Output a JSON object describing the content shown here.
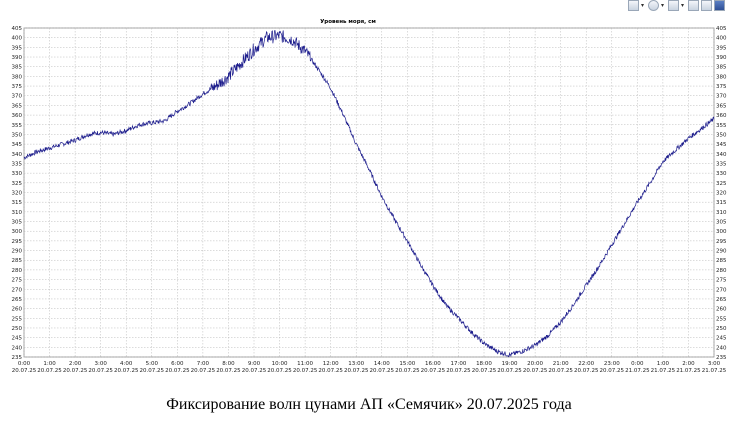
{
  "chart_data": {
    "type": "line",
    "title": "Уровень моря, см",
    "ylim": [
      235,
      405
    ],
    "yticks": [
      235,
      240,
      245,
      250,
      255,
      260,
      265,
      270,
      275,
      280,
      285,
      290,
      295,
      300,
      305,
      310,
      315,
      320,
      325,
      330,
      335,
      340,
      345,
      350,
      355,
      360,
      365,
      370,
      375,
      380,
      385,
      390,
      395,
      400,
      405
    ],
    "xlim": [
      0,
      27
    ],
    "xticks": [
      {
        "pos": 0,
        "time": "0:00",
        "date": "20.07.25"
      },
      {
        "pos": 1,
        "time": "1:00",
        "date": "20.07.25"
      },
      {
        "pos": 2,
        "time": "2:00",
        "date": "20.07.25"
      },
      {
        "pos": 3,
        "time": "3:00",
        "date": "20.07.25"
      },
      {
        "pos": 4,
        "time": "4:00",
        "date": "20.07.25"
      },
      {
        "pos": 5,
        "time": "5:00",
        "date": "20.07.25"
      },
      {
        "pos": 6,
        "time": "6:00",
        "date": "20.07.25"
      },
      {
        "pos": 7,
        "time": "7:00",
        "date": "20.07.25"
      },
      {
        "pos": 8,
        "time": "8:00",
        "date": "20.07.25"
      },
      {
        "pos": 9,
        "time": "9:00",
        "date": "20.07.25"
      },
      {
        "pos": 10,
        "time": "10:00",
        "date": "20.07.25"
      },
      {
        "pos": 11,
        "time": "11:00",
        "date": "20.07.25"
      },
      {
        "pos": 12,
        "time": "12:00",
        "date": "20.07.25"
      },
      {
        "pos": 13,
        "time": "13:00",
        "date": "20.07.25"
      },
      {
        "pos": 14,
        "time": "14:00",
        "date": "20.07.25"
      },
      {
        "pos": 15,
        "time": "15:00",
        "date": "20.07.25"
      },
      {
        "pos": 16,
        "time": "16:00",
        "date": "20.07.25"
      },
      {
        "pos": 17,
        "time": "17:00",
        "date": "20.07.25"
      },
      {
        "pos": 18,
        "time": "18:00",
        "date": "20.07.25"
      },
      {
        "pos": 19,
        "time": "19:00",
        "date": "20.07.25"
      },
      {
        "pos": 20,
        "time": "20:00",
        "date": "20.07.25"
      },
      {
        "pos": 21,
        "time": "21:00",
        "date": "20.07.25"
      },
      {
        "pos": 22,
        "time": "22:00",
        "date": "20.07.25"
      },
      {
        "pos": 23,
        "time": "23:00",
        "date": "20.07.25"
      },
      {
        "pos": 24,
        "time": "0:00",
        "date": "21.07.25"
      },
      {
        "pos": 25,
        "time": "1:00",
        "date": "21.07.25"
      },
      {
        "pos": 26,
        "time": "2:00",
        "date": "21.07.25"
      },
      {
        "pos": 27,
        "time": "3:00",
        "date": "21.07.25"
      }
    ],
    "grid": true,
    "series_color": "#1c1c8c",
    "x": [
      0,
      0.5,
      1,
      1.5,
      2,
      2.5,
      3,
      3.5,
      4,
      4.5,
      5,
      5.5,
      6,
      6.5,
      7,
      7.5,
      8,
      8.5,
      9,
      9.5,
      10,
      10.5,
      11,
      11.5,
      12,
      12.5,
      13,
      13.5,
      14,
      14.5,
      15,
      15.5,
      16,
      16.5,
      17,
      17.5,
      18,
      18.5,
      19,
      19.5,
      20,
      20.5,
      21,
      21.5,
      22,
      22.5,
      23,
      23.5,
      24,
      24.5,
      25,
      25.5,
      26,
      26.5,
      27
    ],
    "y": [
      338,
      341,
      343,
      345,
      347,
      350,
      351,
      350,
      352,
      355,
      356,
      357,
      362,
      366,
      371,
      375,
      380,
      387,
      394,
      400,
      401,
      399,
      393,
      384,
      374,
      360,
      345,
      332,
      318,
      306,
      295,
      283,
      272,
      262,
      255,
      248,
      242,
      238,
      236,
      238,
      241,
      246,
      253,
      262,
      272,
      282,
      293,
      304,
      315,
      325,
      336,
      342,
      348,
      353,
      358
    ]
  },
  "caption": "Фиксирование волн цунами АП «Семячик» 20.07.2025 года",
  "toolbar": {
    "icons": [
      "bar-chart-icon",
      "settings-icon",
      "cursor-icon",
      "zoom-icon",
      "print-icon",
      "save-icon"
    ]
  }
}
